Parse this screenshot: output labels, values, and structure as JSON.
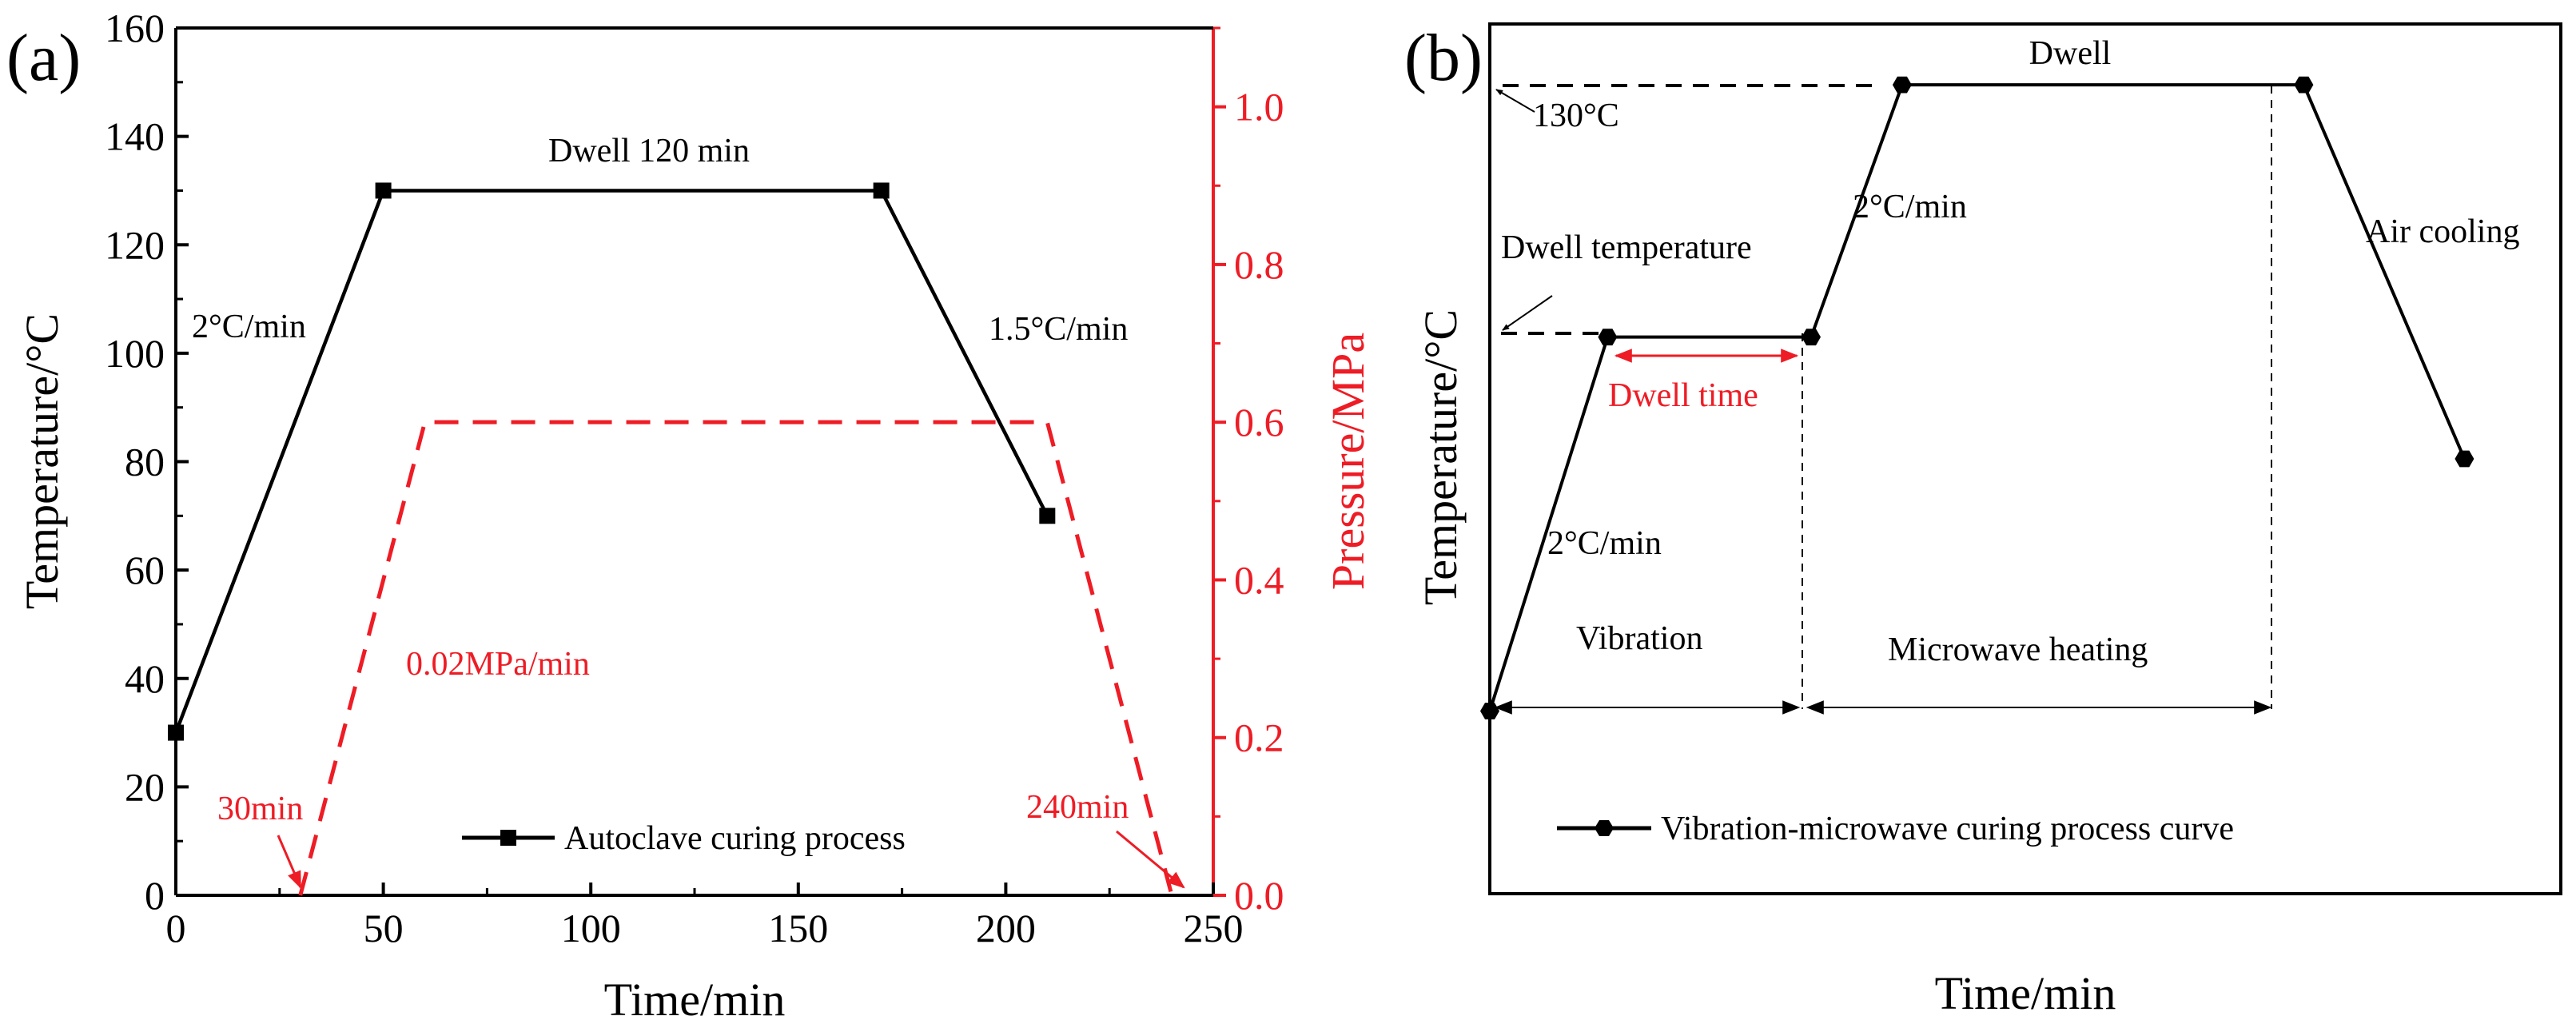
{
  "chart_data": [
    {
      "panel_label": "(a)",
      "type": "line",
      "xlabel": "Time/min",
      "ylabel": "Temperature/°C",
      "y2label": "Pressure/MPa",
      "xlim": [
        0,
        250
      ],
      "ylim": [
        0,
        160
      ],
      "y2lim": [
        0,
        1.1
      ],
      "xticks": [
        0,
        50,
        100,
        150,
        200,
        250
      ],
      "xtick_labels": [
        "0",
        "50",
        "100",
        "150",
        "200",
        "250"
      ],
      "yticks": [
        0,
        20,
        40,
        60,
        80,
        100,
        120,
        140,
        160
      ],
      "ytick_labels": [
        "0",
        "20",
        "40",
        "60",
        "80",
        "100",
        "120",
        "140",
        "160"
      ],
      "y2ticks": [
        0,
        0.2,
        0.4,
        0.6,
        0.8,
        1.0
      ],
      "y2tick_labels": [
        "0.0",
        "0.2",
        "0.4",
        "0.6",
        "0.8",
        "1.0"
      ],
      "series": [
        {
          "name": "Autoclave curing process",
          "axis": "left",
          "color": "#000000",
          "marker": "square",
          "x": [
            0,
            50,
            170,
            210
          ],
          "y": [
            30,
            130,
            130,
            70
          ]
        },
        {
          "name": "Pressure",
          "axis": "right",
          "color": "#ee1c25",
          "style": "dashed",
          "x": [
            30,
            60,
            210,
            240
          ],
          "y": [
            0,
            0.6,
            0.6,
            0
          ]
        }
      ],
      "annotations": [
        {
          "text": "Dwell 120 min",
          "color": "#000000"
        },
        {
          "text": "2°C/min",
          "color": "#000000"
        },
        {
          "text": "1.5°C/min",
          "color": "#000000"
        },
        {
          "text": "0.02MPa/min",
          "color": "#ee1c25"
        },
        {
          "text": "30min",
          "color": "#ee1c25",
          "points_to_x": 30
        },
        {
          "text": "240min",
          "color": "#ee1c25",
          "points_to_x": 240
        }
      ],
      "legend": {
        "position": "bottom-center",
        "entries": [
          "Autoclave curing process"
        ]
      }
    },
    {
      "panel_label": "(b)",
      "type": "line",
      "schematic": true,
      "xlabel": "Time/min",
      "ylabel": "Temperature/°C",
      "xlim": [
        0,
        100
      ],
      "ylim": [
        0,
        100
      ],
      "series": [
        {
          "name": "Vibration-microwave curing process curve",
          "color": "#000000",
          "marker": "hexagon",
          "x": [
            0,
            11,
            30,
            38.5,
            76,
            91
          ],
          "y": [
            21,
            64,
            64,
            93,
            93,
            50
          ]
        }
      ],
      "annotations": [
        {
          "text": "Dwell",
          "color": "#000000"
        },
        {
          "text": "130°C",
          "color": "#000000"
        },
        {
          "text": "2°C/min",
          "color": "#000000"
        },
        {
          "text": "Dwell temperature",
          "color": "#000000"
        },
        {
          "text": "Dwell time",
          "color": "#ee1c25"
        },
        {
          "text": "2°C/min",
          "color": "#000000"
        },
        {
          "text": "Vibration",
          "color": "#000000"
        },
        {
          "text": "Microwave heating",
          "color": "#000000"
        },
        {
          "text": "Air cooling",
          "color": "#000000"
        }
      ],
      "legend": {
        "position": "bottom-left",
        "entries": [
          "Vibration-microwave curing process curve"
        ]
      }
    }
  ]
}
